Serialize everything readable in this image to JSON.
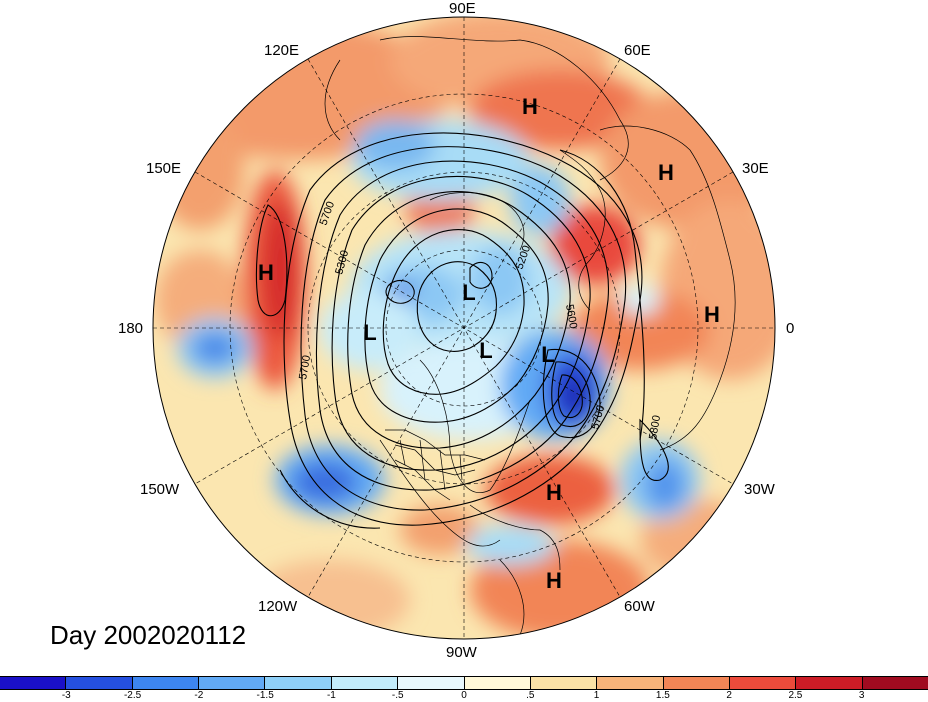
{
  "title": "Day 2002020112",
  "longitude_labels": [
    "90E",
    "120E",
    "60E",
    "150E",
    "30E",
    "180",
    "0",
    "150W",
    "30W",
    "120W",
    "60W",
    "90W"
  ],
  "pressure_systems": [
    "H",
    "H",
    "H",
    "H",
    "H",
    "H",
    "L",
    "L",
    "L",
    "L",
    "L"
  ],
  "contour_labels": [
    "5700",
    "5300",
    "5200",
    "5600",
    "5700",
    "5700",
    "5800"
  ],
  "colorbar": {
    "colors": [
      "#1a10c8",
      "#2550e0",
      "#3d86f0",
      "#62aaf5",
      "#8fd0f8",
      "#c2ecfb",
      "#e8f8fd",
      "#fff8d8",
      "#fbe2a6",
      "#f7b47a",
      "#f28556",
      "#ec4b3b",
      "#cc1c26",
      "#a00b20"
    ],
    "tick_labels": [
      "-3",
      "-2.5",
      "-2",
      "-1.5",
      "-1",
      "-.5",
      "0",
      ".5",
      "1",
      "1.5",
      "2",
      "2.5",
      "3"
    ]
  }
}
